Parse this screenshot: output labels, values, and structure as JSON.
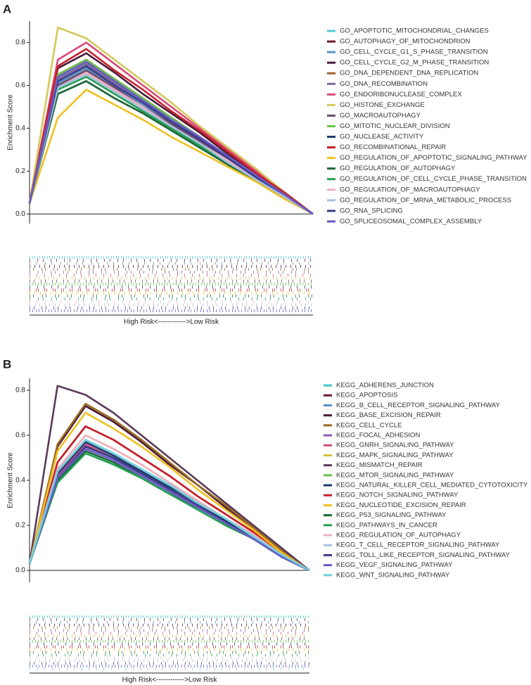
{
  "chart_data": [
    {
      "type": "line",
      "panel_label": "A",
      "y_label": "Enrichment Score",
      "x_label": "High Risk<------------>Low Risk",
      "ylim": [
        -0.045,
        0.9
      ],
      "yticks": [
        {
          "value": 0,
          "label": "0.0"
        },
        0.2,
        0.4,
        0.6,
        0.8
      ],
      "series": [
        {
          "name": "GO_APOPTOTIC_MITOCHONDRIAL_CHANGES",
          "color": "#4fc8d8",
          "values": [
            0.05,
            0.59,
            0.66,
            0.58,
            0.5,
            0.41,
            0.33,
            0.25,
            0.17,
            0.08,
            0
          ]
        },
        {
          "name": "GO_AUTOPHAGY_OF_MITOCHONDRION",
          "color": "#6b1b2e",
          "values": [
            0.05,
            0.65,
            0.72,
            0.63,
            0.54,
            0.45,
            0.36,
            0.27,
            0.18,
            0.09,
            0
          ]
        },
        {
          "name": "GO_CELL_CYCLE_G1_S_PHASE_TRANSITION",
          "color": "#5a8fc0",
          "values": [
            0.05,
            0.61,
            0.68,
            0.6,
            0.51,
            0.43,
            0.34,
            0.26,
            0.17,
            0.09,
            0
          ]
        },
        {
          "name": "GO_CELL_CYCLE_G2_M_PHASE_TRANSITION",
          "color": "#4a1a3a",
          "values": [
            0.05,
            0.68,
            0.75,
            0.66,
            0.56,
            0.47,
            0.38,
            0.28,
            0.19,
            0.09,
            0
          ]
        },
        {
          "name": "GO_DNA_DEPENDENT_DNA_REPLICATION",
          "color": "#a0622a",
          "values": [
            0.05,
            0.65,
            0.72,
            0.63,
            0.54,
            0.45,
            0.36,
            0.27,
            0.18,
            0.09,
            0
          ]
        },
        {
          "name": "GO_DNA_RECOMBINATION",
          "color": "#7a6a9a",
          "values": [
            0.05,
            0.63,
            0.7,
            0.61,
            0.53,
            0.44,
            0.35,
            0.26,
            0.18,
            0.09,
            0
          ]
        },
        {
          "name": "GO_ENDORIBONUCLEASE_COMPLEX",
          "color": "#d94a7a",
          "values": [
            0.05,
            0.72,
            0.8,
            0.7,
            0.6,
            0.5,
            0.4,
            0.3,
            0.2,
            0.1,
            0
          ]
        },
        {
          "name": "GO_HISTONE_EXCHANGE",
          "color": "#d4c85a",
          "values": [
            0.05,
            0.87,
            0.82,
            0.72,
            0.62,
            0.52,
            0.41,
            0.31,
            0.21,
            0.1,
            0
          ]
        },
        {
          "name": "GO_MACROAUTOPHAGY",
          "color": "#6a4a6a",
          "values": [
            0.05,
            0.6,
            0.67,
            0.59,
            0.5,
            0.42,
            0.34,
            0.25,
            0.17,
            0.08,
            0
          ]
        },
        {
          "name": "GO_MITOTIC_NUCLEAR_DIVISION",
          "color": "#6ac04a",
          "values": [
            0.05,
            0.65,
            0.72,
            0.63,
            0.54,
            0.45,
            0.36,
            0.27,
            0.18,
            0.09,
            0
          ]
        },
        {
          "name": "GO_NUCLEASE_ACTIVITY",
          "color": "#1e3a6a",
          "values": [
            0.05,
            0.56,
            0.62,
            0.54,
            0.47,
            0.39,
            0.31,
            0.23,
            0.16,
            0.08,
            0
          ]
        },
        {
          "name": "GO_RECOMBINATIONAL_REPAIR",
          "color": "#c8202a",
          "values": [
            0.05,
            0.69,
            0.77,
            0.67,
            0.58,
            0.48,
            0.39,
            0.29,
            0.19,
            0.1,
            0
          ]
        },
        {
          "name": "GO_REGULATION_OF_APOPTOTIC_SIGNALING_PATHWAY",
          "color": "#f0c020",
          "values": [
            0.05,
            0.45,
            0.58,
            0.51,
            0.44,
            0.36,
            0.29,
            0.22,
            0.15,
            0.07,
            0
          ]
        },
        {
          "name": "GO_REGULATION_OF_AUTOPHAGY",
          "color": "#1e6a3a",
          "values": [
            0.05,
            0.56,
            0.62,
            0.54,
            0.47,
            0.39,
            0.31,
            0.23,
            0.16,
            0.08,
            0
          ]
        },
        {
          "name": "GO_REGULATION_OF_CELL_CYCLE_PHASE_TRANSITION",
          "color": "#22a050",
          "values": [
            0.05,
            0.58,
            0.64,
            0.56,
            0.48,
            0.4,
            0.32,
            0.24,
            0.16,
            0.08,
            0
          ]
        },
        {
          "name": "GO_REGULATION_OF_MACROAUTOPHAGY",
          "color": "#f0b0c0",
          "values": [
            0.05,
            0.59,
            0.66,
            0.58,
            0.5,
            0.41,
            0.33,
            0.25,
            0.17,
            0.08,
            0
          ]
        },
        {
          "name": "GO_REGULATION_OF_MRNA_METABOLIC_PROCESS",
          "color": "#a8c0e0",
          "values": [
            0.05,
            0.59,
            0.65,
            0.57,
            0.49,
            0.41,
            0.33,
            0.24,
            0.16,
            0.08,
            0
          ]
        },
        {
          "name": "GO_RNA_SPLICING",
          "color": "#3a3a8a",
          "values": [
            0.05,
            0.62,
            0.69,
            0.6,
            0.52,
            0.43,
            0.35,
            0.26,
            0.17,
            0.09,
            0
          ]
        },
        {
          "name": "GO_SPLICEOSOMAL_COMPLEX_ASSEMBLY",
          "color": "#6a5ac8",
          "values": [
            0.05,
            0.64,
            0.71,
            0.62,
            0.53,
            0.44,
            0.36,
            0.27,
            0.18,
            0.09,
            0
          ]
        }
      ]
    },
    {
      "type": "line",
      "panel_label": "B",
      "y_label": "Enrichment Score",
      "x_label": "High Risk<------------>Low Risk",
      "ylim": [
        -0.053,
        0.853
      ],
      "yticks": [
        {
          "value": 0,
          "label": "0.0"
        },
        0.2,
        0.4,
        0.6,
        0.8
      ],
      "series": [
        {
          "name": "KEGG_ADHERENS_JUNCTION",
          "color": "#40c8c8",
          "values": [
            0.03,
            0.44,
            0.58,
            0.52,
            0.45,
            0.38,
            0.3,
            0.23,
            0.15,
            0.07,
            0
          ]
        },
        {
          "name": "KEGG_APOPTOSIS",
          "color": "#6b1b2e",
          "values": [
            0.03,
            0.48,
            0.64,
            0.58,
            0.5,
            0.42,
            0.33,
            0.25,
            0.17,
            0.08,
            0
          ]
        },
        {
          "name": "KEGG_B_CELL_RECEPTOR_SIGNALING_PATHWAY",
          "color": "#5a8fc0",
          "values": [
            0.03,
            0.42,
            0.56,
            0.5,
            0.44,
            0.36,
            0.29,
            0.22,
            0.15,
            0.07,
            0
          ]
        },
        {
          "name": "KEGG_BASE_EXCISION_REPAIR",
          "color": "#4a1a3a",
          "values": [
            0.03,
            0.55,
            0.73,
            0.66,
            0.57,
            0.47,
            0.38,
            0.28,
            0.19,
            0.09,
            0
          ]
        },
        {
          "name": "KEGG_CELL_CYCLE",
          "color": "#9a6a20",
          "values": [
            0.03,
            0.56,
            0.74,
            0.67,
            0.58,
            0.48,
            0.38,
            0.29,
            0.19,
            0.09,
            0
          ]
        },
        {
          "name": "KEGG_FOCAL_ADHESION",
          "color": "#8a5ab0",
          "values": [
            0.03,
            0.41,
            0.55,
            0.5,
            0.43,
            0.36,
            0.29,
            0.21,
            0.14,
            0.07,
            0
          ]
        },
        {
          "name": "KEGG_GNRH_SIGNALING_PATHWAY",
          "color": "#d04a80",
          "values": [
            0.03,
            0.42,
            0.56,
            0.5,
            0.44,
            0.36,
            0.29,
            0.22,
            0.15,
            0.07,
            0
          ]
        },
        {
          "name": "KEGG_MAPK_SIGNALING_PATHWAY",
          "color": "#d8c040",
          "values": [
            0.03,
            0.45,
            0.6,
            0.54,
            0.47,
            0.39,
            0.31,
            0.23,
            0.16,
            0.07,
            0
          ]
        },
        {
          "name": "KEGG_MISMATCH_REPAIR",
          "color": "#5a3a5a",
          "values": [
            0.03,
            0.82,
            0.78,
            0.7,
            0.6,
            0.5,
            0.4,
            0.3,
            0.2,
            0.1,
            0
          ]
        },
        {
          "name": "KEGG_MTOR_SIGNALING_PATHWAY",
          "color": "#6ac04a",
          "values": [
            0.03,
            0.41,
            0.55,
            0.5,
            0.43,
            0.36,
            0.29,
            0.21,
            0.14,
            0.07,
            0
          ]
        },
        {
          "name": "KEGG_NATURAL_KILLER_CELL_MEDIATED_CYTOTOXICITY",
          "color": "#1e3a6a",
          "values": [
            0.03,
            0.43,
            0.57,
            0.51,
            0.44,
            0.37,
            0.3,
            0.22,
            0.15,
            0.07,
            0
          ]
        },
        {
          "name": "KEGG_NOTCH_SIGNALING_PATHWAY",
          "color": "#c8202a",
          "values": [
            0.03,
            0.48,
            0.64,
            0.58,
            0.5,
            0.42,
            0.33,
            0.25,
            0.17,
            0.08,
            0
          ]
        },
        {
          "name": "KEGG_NUCLEOTIDE_EXCISION_REPAIR",
          "color": "#f0c020",
          "values": [
            0.03,
            0.53,
            0.7,
            0.63,
            0.55,
            0.46,
            0.36,
            0.27,
            0.18,
            0.08,
            0
          ]
        },
        {
          "name": "KEGG_P53_SIGNALING_PATHWAY",
          "color": "#1e6a3a",
          "values": [
            0.03,
            0.4,
            0.53,
            0.48,
            0.41,
            0.34,
            0.28,
            0.21,
            0.14,
            0.06,
            0
          ]
        },
        {
          "name": "KEGG_PATHWAYS_IN_CANCER",
          "color": "#22a050",
          "values": [
            0.03,
            0.39,
            0.52,
            0.47,
            0.41,
            0.34,
            0.27,
            0.2,
            0.14,
            0.06,
            0
          ]
        },
        {
          "name": "KEGG_REGULATION_OF_AUTOPHAGY",
          "color": "#f0b0c0",
          "values": [
            0.03,
            0.45,
            0.6,
            0.54,
            0.47,
            0.39,
            0.31,
            0.23,
            0.16,
            0.07,
            0
          ]
        },
        {
          "name": "KEGG_T_CELL_RECEPTOR_SIGNALING_PATHWAY",
          "color": "#a8c0e0",
          "values": [
            0.03,
            0.44,
            0.58,
            0.52,
            0.45,
            0.38,
            0.3,
            0.23,
            0.15,
            0.07,
            0
          ]
        },
        {
          "name": "KEGG_TOLL_LIKE_RECEPTOR_SIGNALING_PATHWAY",
          "color": "#3a3a8a",
          "values": [
            0.03,
            0.41,
            0.55,
            0.5,
            0.43,
            0.36,
            0.29,
            0.21,
            0.14,
            0.07,
            0
          ]
        },
        {
          "name": "KEGG_VEGF_SIGNALING_PATHWAY",
          "color": "#6a5ac8",
          "values": [
            0.03,
            0.41,
            0.54,
            0.49,
            0.42,
            0.35,
            0.28,
            0.21,
            0.14,
            0.06,
            0
          ]
        },
        {
          "name": "KEGG_WNT_SIGNALING_PATHWAY",
          "color": "#70d0e0",
          "values": [
            0.03,
            0.44,
            0.58,
            0.52,
            0.45,
            0.38,
            0.3,
            0.23,
            0.15,
            0.07,
            0
          ]
        }
      ]
    }
  ]
}
